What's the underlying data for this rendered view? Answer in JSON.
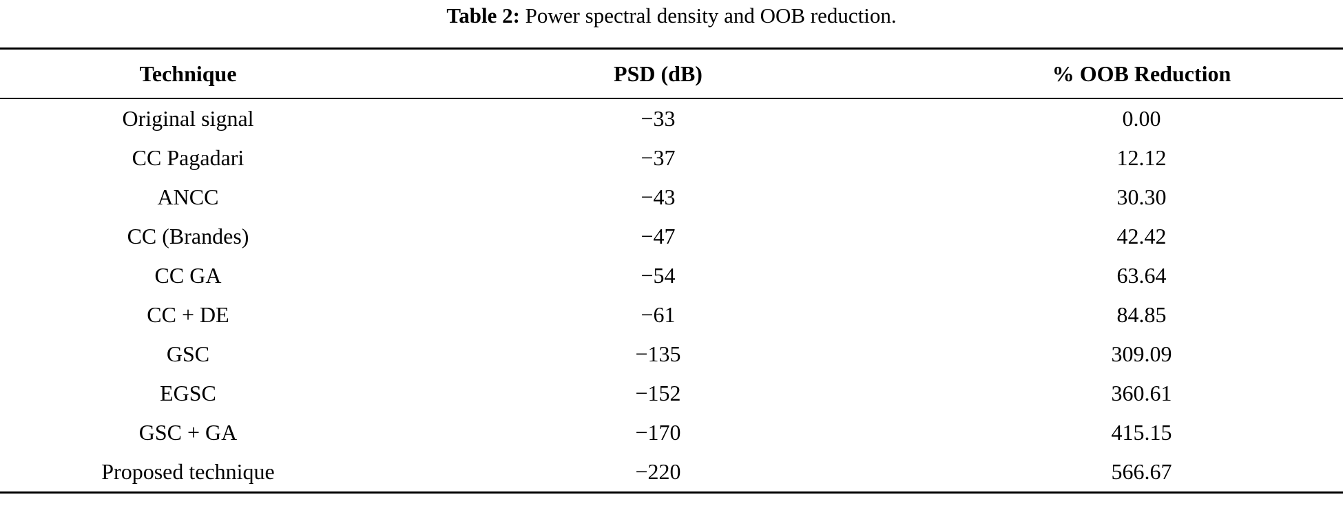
{
  "caption": {
    "label": "Table 2:",
    "text": " Power spectral density and OOB reduction."
  },
  "colors": {
    "background": "#ffffff",
    "text": "#000000",
    "rule": "#000000"
  },
  "table": {
    "columns": [
      "Technique",
      "PSD (dB)",
      "% OOB Reduction"
    ],
    "rows": [
      {
        "technique": "Original signal",
        "psd_db": "−33",
        "oob_reduction": "0.00"
      },
      {
        "technique": "CC Pagadari",
        "psd_db": "−37",
        "oob_reduction": "12.12"
      },
      {
        "technique": "ANCC",
        "psd_db": "−43",
        "oob_reduction": "30.30"
      },
      {
        "technique": "CC (Brandes)",
        "psd_db": "−47",
        "oob_reduction": "42.42"
      },
      {
        "technique": "CC GA",
        "psd_db": "−54",
        "oob_reduction": "63.64"
      },
      {
        "technique": "CC + DE",
        "psd_db": "−61",
        "oob_reduction": "84.85"
      },
      {
        "technique": "GSC",
        "psd_db": "−135",
        "oob_reduction": "309.09"
      },
      {
        "technique": "EGSC",
        "psd_db": "−152",
        "oob_reduction": "360.61"
      },
      {
        "technique": "GSC + GA",
        "psd_db": "−170",
        "oob_reduction": "415.15"
      },
      {
        "technique": "Proposed technique",
        "psd_db": "−220",
        "oob_reduction": "566.67"
      }
    ]
  }
}
